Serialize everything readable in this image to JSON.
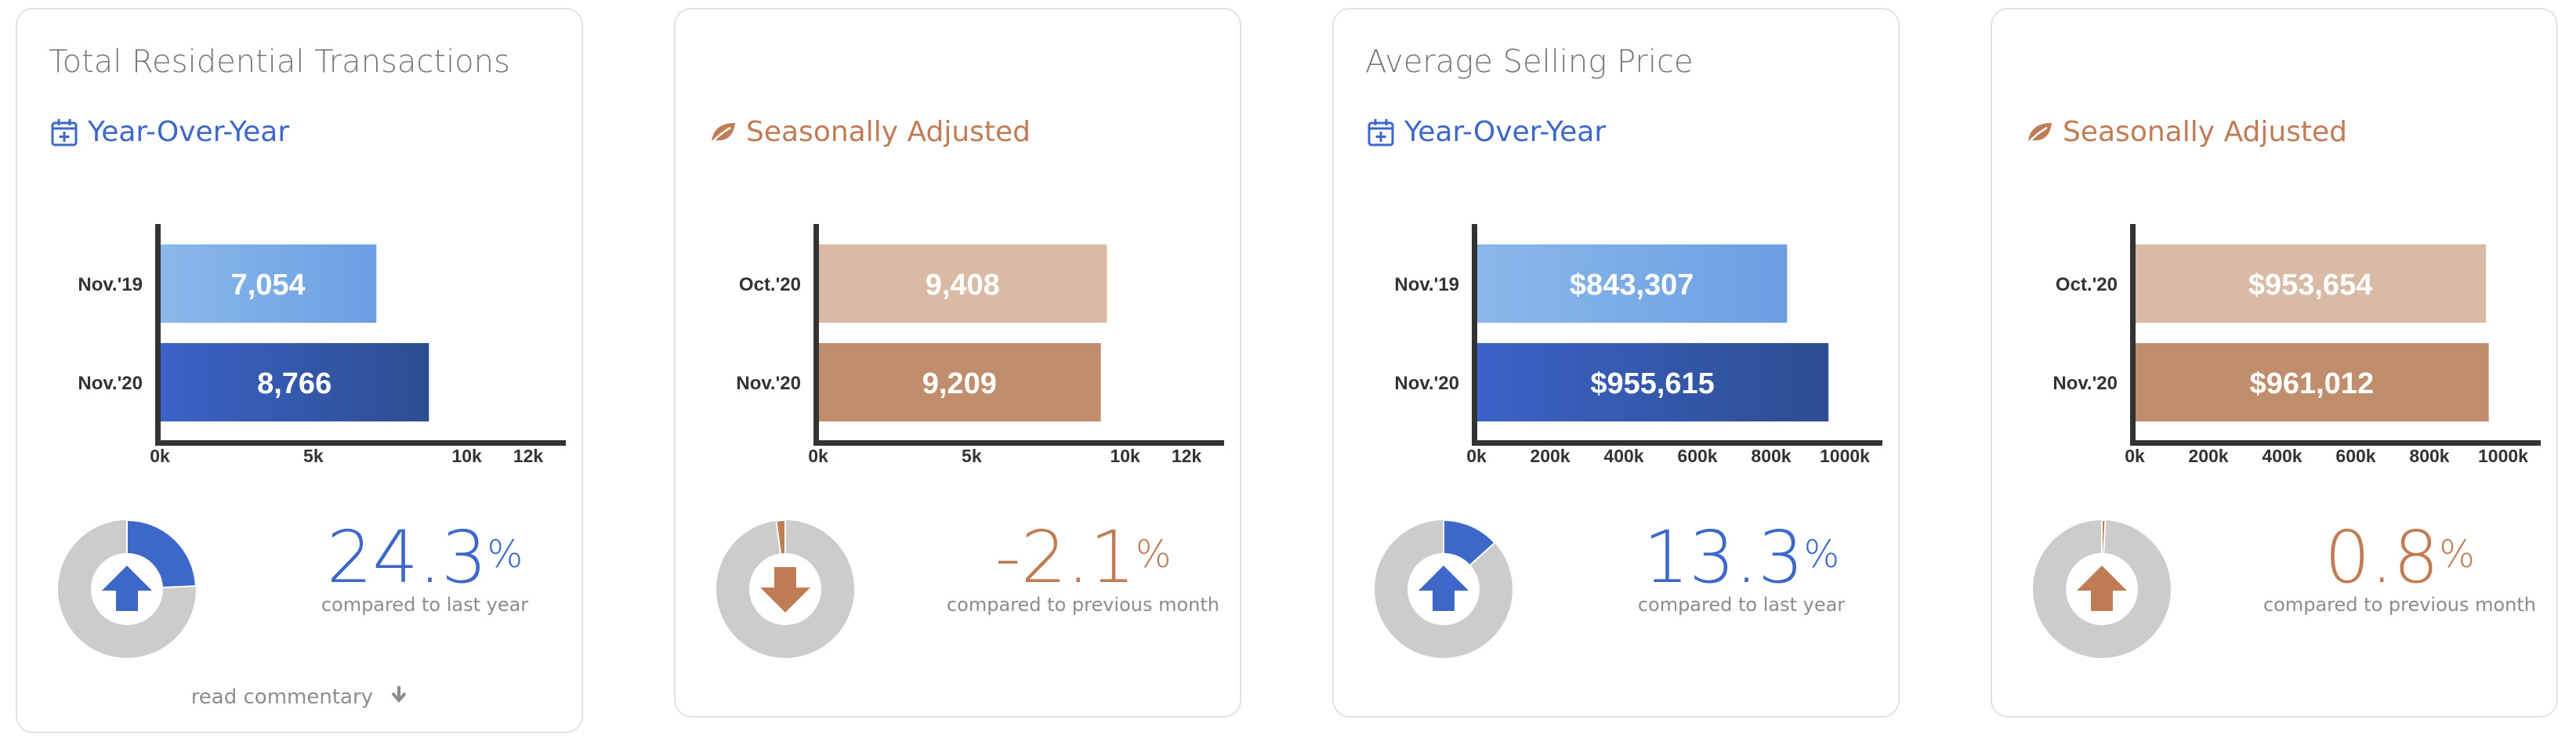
{
  "cards": [
    {
      "title": "Total Residential Transactions",
      "subtitle": "Year-Over-Year",
      "subtitle_icon": "calendar-plus-icon",
      "theme": "blue",
      "change": {
        "value": "24.3",
        "unit": "%",
        "caption": "compared to last year",
        "direction": "up",
        "fraction": 0.243
      },
      "read_more": "read commentary"
    },
    {
      "title": "",
      "subtitle": "Seasonally Adjusted",
      "subtitle_icon": "leaf-icon",
      "theme": "brown",
      "change": {
        "value": "-2.1",
        "unit": "%",
        "caption": "compared to previous month",
        "direction": "down",
        "fraction": 0.021
      }
    },
    {
      "title": "Average Selling Price",
      "subtitle": "Year-Over-Year",
      "subtitle_icon": "calendar-plus-icon",
      "theme": "blue",
      "change": {
        "value": "13.3",
        "unit": "%",
        "caption": "compared to last year",
        "direction": "up",
        "fraction": 0.133
      }
    },
    {
      "title": "",
      "subtitle": "Seasonally Adjusted",
      "subtitle_icon": "leaf-icon",
      "theme": "brown",
      "change": {
        "value": "0.8",
        "unit": "%",
        "caption": "compared to previous month",
        "direction": "up",
        "fraction": 0.008
      }
    }
  ],
  "colors": {
    "blue_text": "#3d67c9",
    "brown_text": "#c07c55",
    "blue_light_from": "#8ab8ea",
    "blue_light_to": "#6b9fe2",
    "blue_dark_from": "#3b63c8",
    "blue_dark_to": "#2d4d8f",
    "brown_light": "#d9bba5",
    "brown_dark": "#c08d6d",
    "donut_bg": "#cccccc",
    "blue_accent": "#3d67c9",
    "brown_accent": "#c07c55",
    "axis": "#333333"
  },
  "chart_data": [
    {
      "type": "bar",
      "orientation": "horizontal",
      "categories": [
        "Nov.'19",
        "Nov.'20"
      ],
      "values": [
        7054,
        8766
      ],
      "value_labels": [
        "7,054",
        "8,766"
      ],
      "xlim": [
        0,
        12000
      ],
      "xticks": [
        0,
        5000,
        10000,
        12000
      ],
      "xtick_labels": [
        "0k",
        "5k",
        "10k",
        "12k"
      ]
    },
    {
      "type": "bar",
      "orientation": "horizontal",
      "categories": [
        "Oct.'20",
        "Nov.'20"
      ],
      "values": [
        9408,
        9209
      ],
      "value_labels": [
        "9,408",
        "9,209"
      ],
      "xlim": [
        0,
        12000
      ],
      "xticks": [
        0,
        5000,
        10000,
        12000
      ],
      "xtick_labels": [
        "0k",
        "5k",
        "10k",
        "12k"
      ]
    },
    {
      "type": "bar",
      "orientation": "horizontal",
      "categories": [
        "Nov.'19",
        "Nov.'20"
      ],
      "values": [
        843307,
        955615
      ],
      "value_labels": [
        "$843,307",
        "$955,615"
      ],
      "xlim": [
        0,
        1000000
      ],
      "xticks": [
        0,
        200000,
        400000,
        600000,
        800000,
        1000000
      ],
      "xtick_labels": [
        "0k",
        "200k",
        "400k",
        "600k",
        "800k",
        "1000k"
      ]
    },
    {
      "type": "bar",
      "orientation": "horizontal",
      "categories": [
        "Oct.'20",
        "Nov.'20"
      ],
      "values": [
        953654,
        961012
      ],
      "value_labels": [
        "$953,654",
        "$961,012"
      ],
      "xlim": [
        0,
        1000000
      ],
      "xticks": [
        0,
        200000,
        400000,
        600000,
        800000,
        1000000
      ],
      "xtick_labels": [
        "0k",
        "200k",
        "400k",
        "600k",
        "800k",
        "1000k"
      ]
    }
  ]
}
